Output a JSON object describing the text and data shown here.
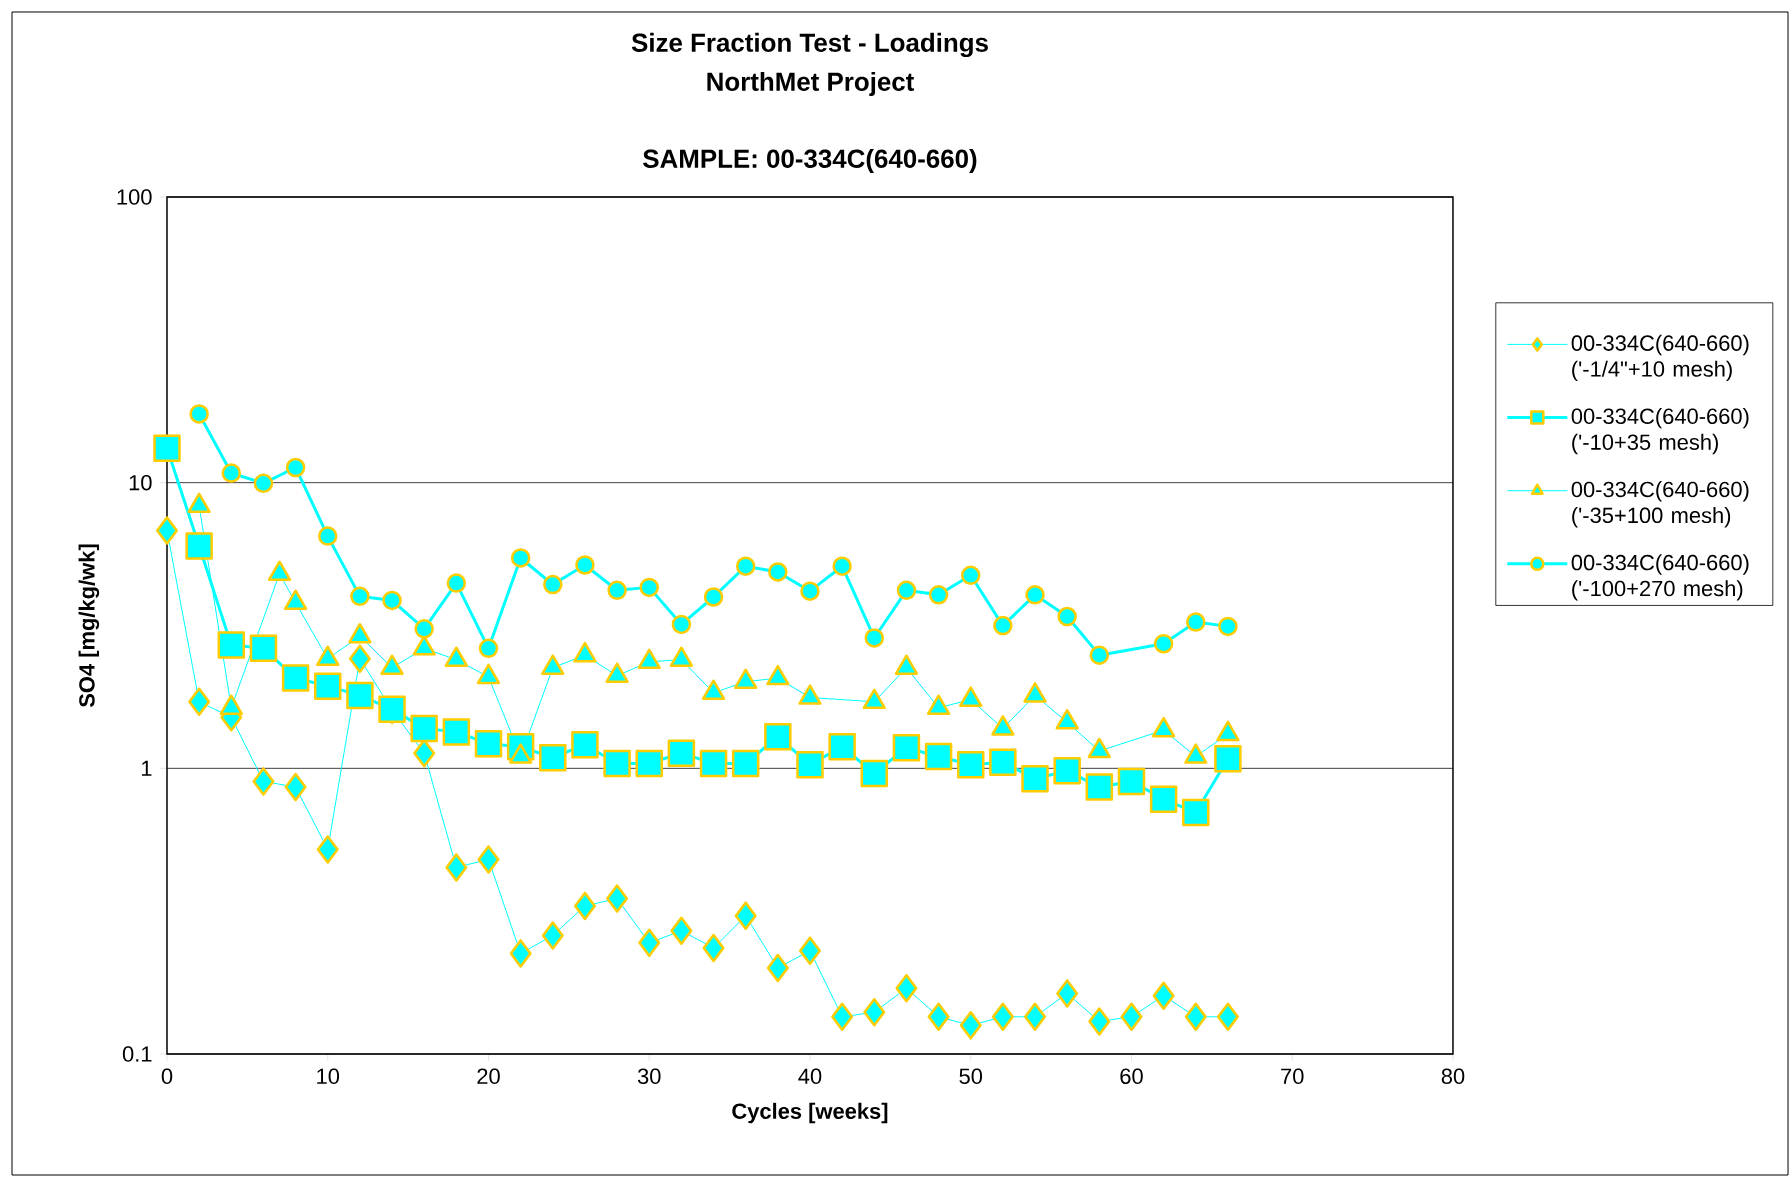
{
  "chart_data": {
    "type": "line",
    "title": "Size Fraction Test - Loadings",
    "subtitle": "NorthMet Project",
    "annotations": [
      "SAMPLE: 00-334C(640-660)"
    ],
    "xlabel": "Cycles [weeks]",
    "ylabel": "SO4 [mg/kg/wk]",
    "xlim": [
      0,
      80
    ],
    "xticks": [
      0,
      10,
      20,
      30,
      40,
      50,
      60,
      70,
      80
    ],
    "ylim": [
      0.1,
      100
    ],
    "yticks": [
      0.1,
      1,
      10,
      100
    ],
    "log": "y",
    "grid": "y",
    "legend": "right",
    "line_style": "solid",
    "series": [
      {
        "name": "00-334C(640-660) ('-1/4\"+10 mesh)",
        "color": "#00ffff",
        "marker": "diamond",
        "x": [
          0,
          2,
          4,
          6,
          8,
          10,
          12,
          14,
          16,
          18,
          20,
          22,
          24,
          26,
          28,
          30,
          32,
          34,
          36,
          38,
          40,
          42,
          44,
          46,
          48,
          50,
          52,
          54,
          56,
          58,
          60,
          62,
          64,
          66
        ],
        "values": [
          6.8,
          1.71,
          1.51,
          0.9,
          0.86,
          0.52,
          2.42,
          1.6,
          1.13,
          0.45,
          0.48,
          0.225,
          0.26,
          0.33,
          0.35,
          0.245,
          0.27,
          0.235,
          0.305,
          0.2,
          0.23,
          0.135,
          0.14,
          0.17,
          0.135,
          0.126,
          0.135,
          0.135,
          0.163,
          0.13,
          0.135,
          0.16,
          0.135,
          0.135
        ]
      },
      {
        "name": "00-334C(640-660) ('-10+35 mesh)",
        "color": "#00ffff",
        "marker": "square",
        "x": [
          0,
          2,
          4,
          6,
          8,
          10,
          12,
          14,
          16,
          18,
          20,
          22,
          24,
          26,
          28,
          30,
          32,
          34,
          36,
          38,
          40,
          42,
          44,
          46,
          48,
          50,
          52,
          54,
          56,
          58,
          60,
          62,
          64,
          66
        ],
        "values": [
          13.2,
          6.0,
          2.7,
          2.63,
          2.07,
          1.94,
          1.8,
          1.61,
          1.38,
          1.34,
          1.22,
          1.19,
          1.09,
          1.21,
          1.04,
          1.04,
          1.13,
          1.04,
          1.04,
          1.29,
          1.03,
          1.19,
          0.96,
          1.18,
          1.1,
          1.03,
          1.05,
          0.92,
          0.98,
          0.86,
          0.9,
          0.78,
          0.7,
          1.08
        ]
      },
      {
        "name": "00-334C(640-660) ('-35+100 mesh)",
        "color": "#00ffff",
        "marker": "triangle",
        "x": [
          2,
          4,
          7,
          8,
          10,
          12,
          14,
          16,
          18,
          20,
          22,
          24,
          26,
          28,
          30,
          32,
          34,
          36,
          38,
          40,
          44,
          46,
          48,
          50,
          52,
          54,
          56,
          58,
          62,
          64,
          66
        ],
        "values": [
          8.3,
          1.63,
          4.8,
          3.8,
          2.42,
          2.9,
          2.25,
          2.63,
          2.4,
          2.09,
          1.1,
          2.25,
          2.49,
          2.11,
          2.36,
          2.4,
          1.84,
          2.01,
          2.07,
          1.77,
          1.71,
          2.25,
          1.63,
          1.74,
          1.38,
          1.8,
          1.45,
          1.15,
          1.36,
          1.1,
          1.32
        ]
      },
      {
        "name": "00-334C(640-660) ('-100+270 mesh)",
        "color": "#00ffff",
        "marker": "circle",
        "x": [
          2,
          4,
          6,
          8,
          10,
          12,
          14,
          16,
          18,
          20,
          22,
          24,
          26,
          28,
          30,
          32,
          34,
          36,
          38,
          40,
          42,
          44,
          46,
          48,
          50,
          52,
          54,
          56,
          58,
          62,
          64,
          66
        ],
        "values": [
          17.4,
          10.8,
          9.95,
          11.3,
          6.5,
          4.0,
          3.87,
          3.08,
          4.45,
          2.63,
          5.45,
          4.4,
          5.15,
          4.2,
          4.3,
          3.19,
          3.98,
          5.1,
          4.87,
          4.17,
          5.1,
          2.86,
          4.2,
          4.05,
          4.74,
          3.16,
          4.05,
          3.4,
          2.49,
          2.73,
          3.25,
          3.14
        ]
      }
    ]
  }
}
